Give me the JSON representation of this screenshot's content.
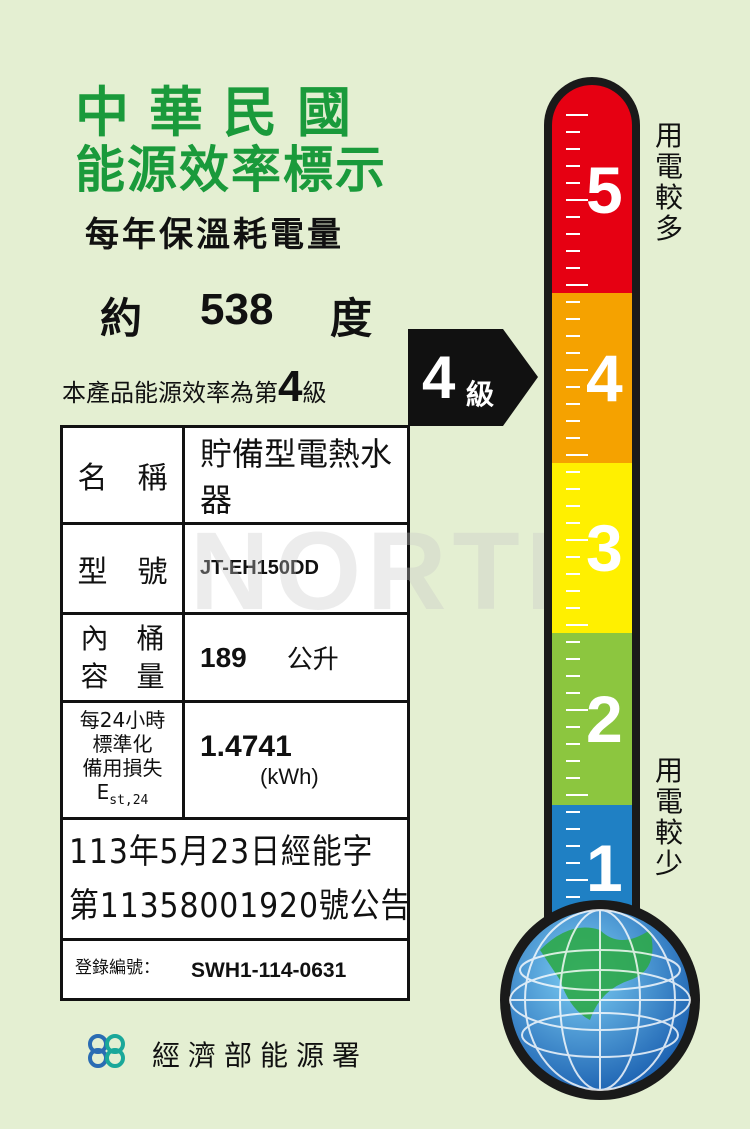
{
  "header": {
    "line1": "中華民國",
    "line2": "能源效率標示",
    "line3": "每年保溫耗電量"
  },
  "consumption": {
    "prefix": "約",
    "value": "538",
    "unit": "度"
  },
  "grade": {
    "text": "本產品能源效率為第",
    "number": "4",
    "suffix": "級",
    "badge_number": "4",
    "badge_suffix": "級"
  },
  "table": {
    "name_label": "名　稱",
    "name_value": "貯備型電熱水器",
    "model_label": "型　號",
    "model_value": "JT-EH150DD",
    "capacity_label_1": "內　桶",
    "capacity_label_2": "容　量",
    "capacity_value": "189",
    "capacity_unit": "公升",
    "loss_label_1": "每24小時",
    "loss_label_2": "標準化",
    "loss_label_3": "備用損失",
    "loss_label_4": "E",
    "loss_label_sub": "st,24",
    "loss_value": "1.4741",
    "loss_unit": "(kWh)",
    "notice_1": "113年5月23日經能字",
    "notice_2": "第11358001920號公告",
    "reg_label": "登錄編號：",
    "reg_value": "SWH1-114-0631"
  },
  "watermark": "NORTH",
  "scale": {
    "levels": [
      "5",
      "4",
      "3",
      "2",
      "1"
    ],
    "colors": [
      "#e60012",
      "#f5a200",
      "#fff000",
      "#8cc63f",
      "#1f80c4"
    ],
    "high_label": "用電較多",
    "low_label": "用電較少",
    "current_level": 4
  },
  "footer": {
    "agency": "經濟部能源署",
    "logo_icon": "energy-bureau-logo-icon"
  }
}
